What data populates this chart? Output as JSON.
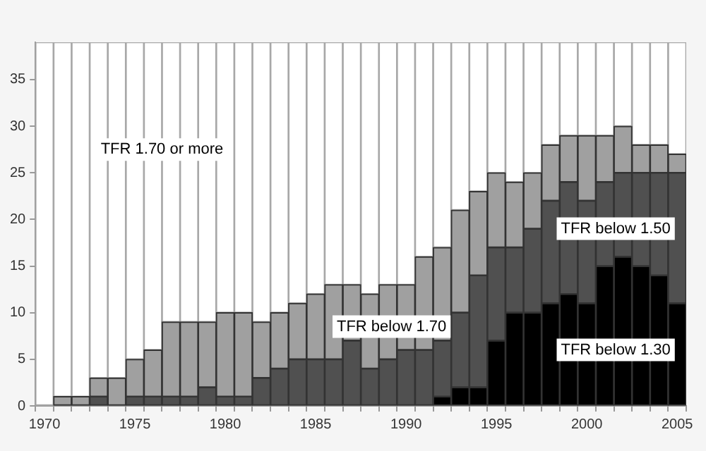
{
  "chart_data": {
    "type": "bar",
    "stacked": true,
    "grid": false,
    "legend": false,
    "categories": [
      "1970",
      null,
      null,
      null,
      null,
      "1975",
      null,
      null,
      null,
      null,
      "1980",
      null,
      null,
      null,
      null,
      "1985",
      null,
      null,
      null,
      null,
      "1990",
      null,
      null,
      null,
      null,
      "1995",
      null,
      null,
      null,
      null,
      "2000",
      null,
      null,
      null,
      null,
      "2005"
    ],
    "ylim": [
      0,
      39
    ],
    "yticks": [
      0,
      5,
      10,
      15,
      20,
      25,
      30,
      35
    ],
    "series": [
      {
        "name": "TFR below 1.30",
        "color": "#000000",
        "values": [
          0,
          0,
          0,
          0,
          0,
          0,
          0,
          0,
          0,
          0,
          0,
          0,
          0,
          0,
          0,
          0,
          0,
          0,
          0,
          0,
          0,
          0,
          1,
          2,
          2,
          7,
          10,
          10,
          11,
          12,
          11,
          15,
          16,
          15,
          14,
          11
        ]
      },
      {
        "name": "TFR below 1.50",
        "color": "#505050",
        "values": [
          0,
          0,
          0,
          1,
          0,
          1,
          1,
          1,
          1,
          2,
          1,
          1,
          3,
          4,
          5,
          5,
          5,
          7,
          4,
          5,
          6,
          6,
          6,
          8,
          12,
          10,
          7,
          9,
          11,
          12,
          11,
          9,
          9,
          10,
          11,
          14
        ]
      },
      {
        "name": "TFR below 1.70",
        "color": "#a0a0a0",
        "values": [
          0,
          1,
          1,
          2,
          3,
          4,
          5,
          8,
          8,
          7,
          9,
          9,
          6,
          6,
          6,
          7,
          8,
          6,
          8,
          8,
          7,
          10,
          10,
          11,
          9,
          8,
          7,
          6,
          6,
          5,
          7,
          5,
          5,
          3,
          3,
          2
        ]
      },
      {
        "name": "TFR 1.70 or more",
        "color": "#ffffff",
        "values": [
          39,
          38,
          38,
          36,
          36,
          34,
          33,
          30,
          30,
          30,
          29,
          29,
          30,
          29,
          28,
          27,
          26,
          26,
          27,
          26,
          26,
          23,
          22,
          18,
          16,
          14,
          15,
          14,
          11,
          10,
          10,
          10,
          9,
          11,
          11,
          12
        ]
      }
    ]
  }
}
